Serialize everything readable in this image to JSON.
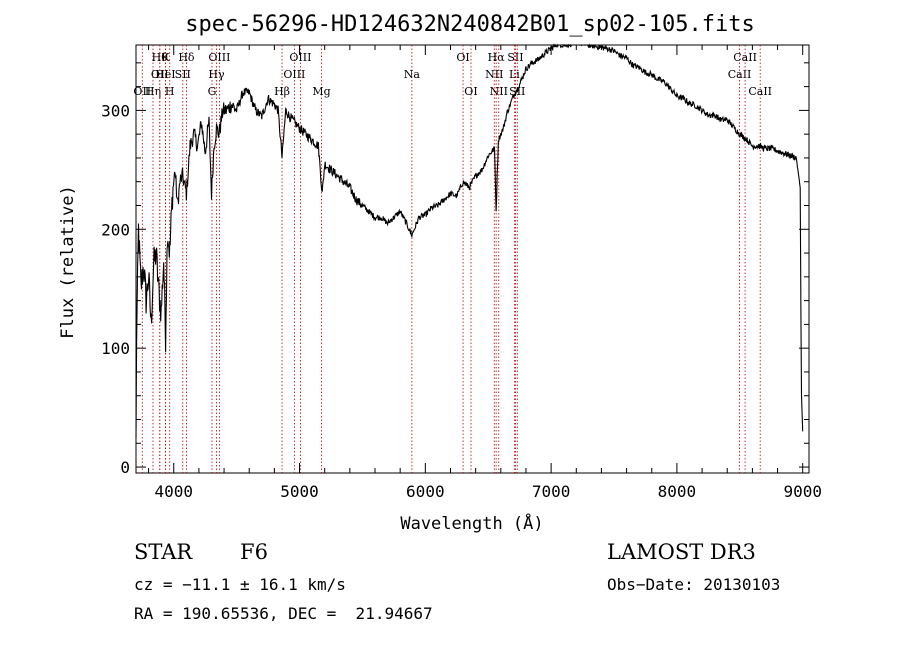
{
  "chart_data": {
    "type": "line",
    "title": "spec-56296-HD124632N240842B01_sp02-105.fits",
    "xlabel": "Wavelength (Å)",
    "ylabel": "Flux (relative)",
    "xlim": [
      3700,
      9050
    ],
    "ylim": [
      -5,
      355
    ],
    "xticks": [
      4000,
      5000,
      6000,
      7000,
      8000,
      9000
    ],
    "yticks": [
      0,
      100,
      200,
      300
    ],
    "grid": false,
    "series": [
      {
        "name": "flux",
        "x": [
          3700,
          3705,
          3720,
          3740,
          3760,
          3780,
          3800,
          3820,
          3840,
          3860,
          3880,
          3900,
          3920,
          3935,
          3950,
          3968,
          3990,
          4010,
          4030,
          4050,
          4070,
          4101,
          4130,
          4160,
          4190,
          4220,
          4250,
          4280,
          4300,
          4320,
          4340,
          4360,
          4390,
          4420,
          4460,
          4500,
          4550,
          4600,
          4650,
          4700,
          4750,
          4800,
          4830,
          4861,
          4890,
          4920,
          4960,
          5000,
          5050,
          5100,
          5150,
          5180,
          5200,
          5250,
          5300,
          5350,
          5400,
          5450,
          5500,
          5550,
          5600,
          5650,
          5700,
          5750,
          5800,
          5850,
          5893,
          5950,
          6000,
          6050,
          6100,
          6150,
          6200,
          6250,
          6300,
          6350,
          6400,
          6450,
          6500,
          6550,
          6563,
          6580,
          6620,
          6650,
          6700,
          6750,
          6800,
          6850,
          6900,
          6950,
          7000,
          7050,
          7100,
          7150,
          7200,
          7250,
          7300,
          7350,
          7400,
          7450,
          7500,
          7550,
          7600,
          7650,
          7700,
          7750,
          7800,
          7850,
          7900,
          7950,
          8000,
          8050,
          8100,
          8150,
          8200,
          8250,
          8300,
          8350,
          8400,
          8450,
          8500,
          8550,
          8600,
          8650,
          8700,
          8750,
          8800,
          8850,
          8900,
          8950,
          8980,
          8990,
          9000
        ],
        "y": [
          20,
          110,
          200,
          150,
          170,
          140,
          160,
          120,
          170,
          180,
          150,
          130,
          175,
          110,
          200,
          180,
          230,
          250,
          220,
          240,
          245,
          230,
          270,
          280,
          270,
          290,
          265,
          290,
          230,
          270,
          285,
          280,
          300,
          300,
          305,
          300,
          315,
          315,
          300,
          295,
          310,
          305,
          300,
          260,
          300,
          295,
          290,
          285,
          280,
          275,
          270,
          230,
          255,
          250,
          245,
          240,
          235,
          225,
          220,
          215,
          210,
          210,
          205,
          210,
          215,
          205,
          195,
          210,
          212,
          218,
          220,
          225,
          230,
          228,
          240,
          235,
          245,
          250,
          262,
          268,
          215,
          275,
          285,
          298,
          312,
          322,
          335,
          340,
          343,
          348,
          352,
          356,
          355,
          356,
          358,
          356,
          355,
          354,
          353,
          352,
          350,
          346,
          344,
          338,
          336,
          332,
          330,
          326,
          324,
          318,
          312,
          310,
          306,
          304,
          300,
          296,
          296,
          292,
          292,
          286,
          280,
          276,
          270,
          270,
          268,
          268,
          266,
          264,
          262,
          260,
          235,
          60,
          30
        ]
      }
    ],
    "line_markers": [
      {
        "wl": 3750,
        "label": "OII",
        "row": 2
      },
      {
        "wl": 3835,
        "label": "Hη",
        "row": 2
      },
      {
        "wl": 3889,
        "label": "Hθ",
        "row": 0
      },
      {
        "wl": 3889,
        "label": "OII",
        "row": 1
      },
      {
        "wl": 3934,
        "label": "K",
        "row": 0
      },
      {
        "wl": 3934,
        "label": "HeI",
        "row": 1
      },
      {
        "wl": 3968,
        "label": "H",
        "row": 2
      },
      {
        "wl": 4072,
        "label": "SII",
        "row": 1
      },
      {
        "wl": 4101,
        "label": "Hδ",
        "row": 0
      },
      {
        "wl": 4304,
        "label": "G",
        "row": 2
      },
      {
        "wl": 4340,
        "label": "Hγ",
        "row": 1
      },
      {
        "wl": 4363,
        "label": "OIII",
        "row": 0
      },
      {
        "wl": 4861,
        "label": "Hβ",
        "row": 2
      },
      {
        "wl": 4959,
        "label": "OIII",
        "row": 1
      },
      {
        "wl": 5007,
        "label": "OIII",
        "row": 0
      },
      {
        "wl": 5175,
        "label": "Mg",
        "row": 2
      },
      {
        "wl": 5893,
        "label": "Na",
        "row": 1
      },
      {
        "wl": 6300,
        "label": "OI",
        "row": 0
      },
      {
        "wl": 6363,
        "label": "OI",
        "row": 2
      },
      {
        "wl": 6548,
        "label": "NII",
        "row": 1
      },
      {
        "wl": 6563,
        "label": "Hα",
        "row": 0
      },
      {
        "wl": 6584,
        "label": "NII",
        "row": 2
      },
      {
        "wl": 6708,
        "label": "Li",
        "row": 1
      },
      {
        "wl": 6717,
        "label": "SII",
        "row": 0
      },
      {
        "wl": 6731,
        "label": "SII",
        "row": 2
      },
      {
        "wl": 8498,
        "label": "CaII",
        "row": 1
      },
      {
        "wl": 8542,
        "label": "CaII",
        "row": 0
      },
      {
        "wl": 8662,
        "label": "CaII",
        "row": 2
      }
    ]
  },
  "info": {
    "object_class": "STAR",
    "subclass": "F6",
    "survey": "LAMOST DR3",
    "redshift": "cz = −11.1 ± 16.1 km/s",
    "obs_date": "Obs−Date: 20130103",
    "coords": "RA = 190.65536, DEC =  21.94667"
  }
}
